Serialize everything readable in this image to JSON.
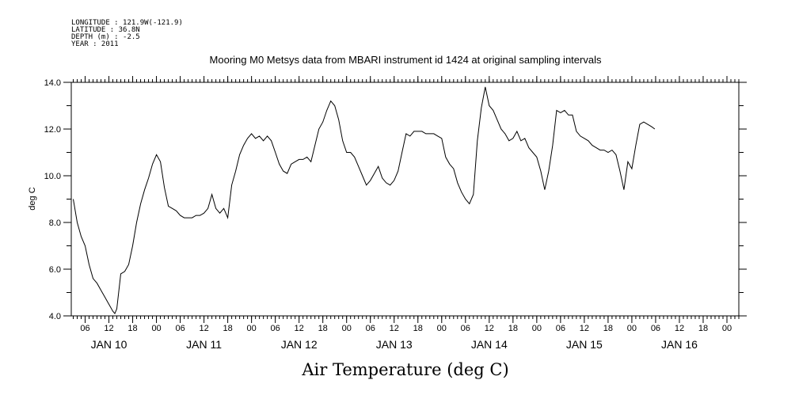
{
  "header": {
    "longitude": "LONGITUDE : 121.9W(-121.9)",
    "latitude": "LATITUDE : 36.8N",
    "depth": "DEPTH (m) : -2.5",
    "year": "YEAR : 2011"
  },
  "chart_data": {
    "type": "line",
    "title": "Mooring M0 Metsys data from MBARI instrument id 1424 at original sampling intervals",
    "footer_title": "Air Temperature (deg C)",
    "ylabel": "deg C",
    "ylim": [
      4.0,
      14.0
    ],
    "y_ticks": [
      "4.0",
      "6.0",
      "8.0",
      "10.0",
      "12.0",
      "14.0"
    ],
    "x_units": "hours since 2011-01-10 00:00",
    "xlim": [
      2.5,
      171
    ],
    "hour_ticks": [
      {
        "t": 6,
        "label": "06"
      },
      {
        "t": 12,
        "label": "12"
      },
      {
        "t": 18,
        "label": "18"
      },
      {
        "t": 24,
        "label": "00"
      },
      {
        "t": 30,
        "label": "06"
      },
      {
        "t": 36,
        "label": "12"
      },
      {
        "t": 42,
        "label": "18"
      },
      {
        "t": 48,
        "label": "00"
      },
      {
        "t": 54,
        "label": "06"
      },
      {
        "t": 60,
        "label": "12"
      },
      {
        "t": 66,
        "label": "18"
      },
      {
        "t": 72,
        "label": "00"
      },
      {
        "t": 78,
        "label": "06"
      },
      {
        "t": 84,
        "label": "12"
      },
      {
        "t": 90,
        "label": "18"
      },
      {
        "t": 96,
        "label": "00"
      },
      {
        "t": 102,
        "label": "06"
      },
      {
        "t": 108,
        "label": "12"
      },
      {
        "t": 114,
        "label": "18"
      },
      {
        "t": 120,
        "label": "00"
      },
      {
        "t": 126,
        "label": "06"
      },
      {
        "t": 132,
        "label": "12"
      },
      {
        "t": 138,
        "label": "18"
      },
      {
        "t": 144,
        "label": "00"
      },
      {
        "t": 150,
        "label": "06"
      },
      {
        "t": 156,
        "label": "12"
      },
      {
        "t": 162,
        "label": "18"
      },
      {
        "t": 168,
        "label": "00"
      }
    ],
    "day_labels": [
      {
        "t": 12,
        "label": "JAN 10"
      },
      {
        "t": 36,
        "label": "JAN 11"
      },
      {
        "t": 60,
        "label": "JAN 12"
      },
      {
        "t": 84,
        "label": "JAN 13"
      },
      {
        "t": 108,
        "label": "JAN 14"
      },
      {
        "t": 132,
        "label": "JAN 15"
      },
      {
        "t": 156,
        "label": "JAN 16"
      }
    ],
    "series": [
      {
        "points": [
          [
            3.0,
            9.0
          ],
          [
            4.0,
            8.0
          ],
          [
            5.0,
            7.4
          ],
          [
            6.0,
            7.0
          ],
          [
            7.0,
            6.2
          ],
          [
            8.0,
            5.6
          ],
          [
            9.0,
            5.4
          ],
          [
            10.0,
            5.1
          ],
          [
            11.0,
            4.8
          ],
          [
            12.0,
            4.5
          ],
          [
            13.0,
            4.2
          ],
          [
            13.5,
            4.1
          ],
          [
            14.0,
            4.3
          ],
          [
            15.0,
            5.8
          ],
          [
            16.0,
            5.9
          ],
          [
            17.0,
            6.2
          ],
          [
            18.0,
            7.0
          ],
          [
            19.0,
            8.0
          ],
          [
            20.0,
            8.8
          ],
          [
            21.0,
            9.4
          ],
          [
            22.0,
            9.9
          ],
          [
            23.0,
            10.5
          ],
          [
            24.0,
            10.9
          ],
          [
            25.0,
            10.6
          ],
          [
            26.0,
            9.5
          ],
          [
            27.0,
            8.7
          ],
          [
            28.0,
            8.6
          ],
          [
            29.0,
            8.5
          ],
          [
            30.0,
            8.3
          ],
          [
            31.0,
            8.2
          ],
          [
            32.0,
            8.2
          ],
          [
            33.0,
            8.2
          ],
          [
            34.0,
            8.3
          ],
          [
            35.0,
            8.3
          ],
          [
            36.0,
            8.4
          ],
          [
            37.0,
            8.6
          ],
          [
            38.0,
            9.2
          ],
          [
            39.0,
            8.6
          ],
          [
            40.0,
            8.4
          ],
          [
            41.0,
            8.6
          ],
          [
            42.0,
            8.2
          ],
          [
            43.0,
            9.6
          ],
          [
            44.0,
            10.2
          ],
          [
            45.0,
            10.9
          ],
          [
            46.0,
            11.3
          ],
          [
            47.0,
            11.6
          ],
          [
            48.0,
            11.8
          ],
          [
            49.0,
            11.6
          ],
          [
            50.0,
            11.7
          ],
          [
            51.0,
            11.5
          ],
          [
            52.0,
            11.7
          ],
          [
            53.0,
            11.5
          ],
          [
            54.0,
            11.0
          ],
          [
            55.0,
            10.5
          ],
          [
            56.0,
            10.2
          ],
          [
            57.0,
            10.1
          ],
          [
            58.0,
            10.5
          ],
          [
            59.0,
            10.6
          ],
          [
            60.0,
            10.7
          ],
          [
            61.0,
            10.7
          ],
          [
            62.0,
            10.8
          ],
          [
            63.0,
            10.6
          ],
          [
            64.0,
            11.3
          ],
          [
            65.0,
            12.0
          ],
          [
            66.0,
            12.3
          ],
          [
            67.0,
            12.8
          ],
          [
            68.0,
            13.2
          ],
          [
            69.0,
            13.0
          ],
          [
            70.0,
            12.4
          ],
          [
            71.0,
            11.5
          ],
          [
            72.0,
            11.0
          ],
          [
            73.0,
            11.0
          ],
          [
            74.0,
            10.8
          ],
          [
            75.0,
            10.4
          ],
          [
            76.0,
            10.0
          ],
          [
            77.0,
            9.6
          ],
          [
            78.0,
            9.8
          ],
          [
            79.0,
            10.1
          ],
          [
            80.0,
            10.4
          ],
          [
            81.0,
            9.9
          ],
          [
            82.0,
            9.7
          ],
          [
            83.0,
            9.6
          ],
          [
            84.0,
            9.8
          ],
          [
            85.0,
            10.2
          ],
          [
            86.0,
            11.0
          ],
          [
            87.0,
            11.8
          ],
          [
            88.0,
            11.7
          ],
          [
            89.0,
            11.9
          ],
          [
            90.0,
            11.9
          ],
          [
            91.0,
            11.9
          ],
          [
            92.0,
            11.8
          ],
          [
            93.0,
            11.8
          ],
          [
            94.0,
            11.8
          ],
          [
            95.0,
            11.7
          ],
          [
            96.0,
            11.6
          ],
          [
            97.0,
            10.8
          ],
          [
            98.0,
            10.5
          ],
          [
            99.0,
            10.3
          ],
          [
            100.0,
            9.7
          ],
          [
            101.0,
            9.3
          ],
          [
            102.0,
            9.0
          ],
          [
            103.0,
            8.8
          ],
          [
            104.0,
            9.2
          ],
          [
            105.0,
            11.5
          ],
          [
            106.0,
            12.9
          ],
          [
            107.0,
            13.8
          ],
          [
            108.0,
            13.0
          ],
          [
            109.0,
            12.8
          ],
          [
            110.0,
            12.4
          ],
          [
            111.0,
            12.0
          ],
          [
            112.0,
            11.8
          ],
          [
            113.0,
            11.5
          ],
          [
            114.0,
            11.6
          ],
          [
            115.0,
            11.9
          ],
          [
            116.0,
            11.5
          ],
          [
            117.0,
            11.6
          ],
          [
            118.0,
            11.2
          ],
          [
            119.0,
            11.0
          ],
          [
            120.0,
            10.8
          ],
          [
            121.0,
            10.2
          ],
          [
            122.0,
            9.4
          ],
          [
            123.0,
            10.2
          ],
          [
            124.0,
            11.3
          ],
          [
            125.0,
            12.8
          ],
          [
            126.0,
            12.7
          ],
          [
            127.0,
            12.8
          ],
          [
            128.0,
            12.6
          ],
          [
            129.0,
            12.6
          ],
          [
            130.0,
            11.9
          ],
          [
            131.0,
            11.7
          ],
          [
            132.0,
            11.6
          ],
          [
            133.0,
            11.5
          ],
          [
            134.0,
            11.3
          ],
          [
            135.0,
            11.2
          ],
          [
            136.0,
            11.1
          ],
          [
            137.0,
            11.1
          ],
          [
            138.0,
            11.0
          ],
          [
            139.0,
            11.1
          ],
          [
            140.0,
            10.9
          ],
          [
            141.0,
            10.2
          ],
          [
            142.0,
            9.4
          ],
          [
            143.0,
            10.6
          ],
          [
            144.0,
            10.3
          ],
          [
            145.0,
            11.3
          ],
          [
            146.0,
            12.2
          ],
          [
            147.0,
            12.3
          ],
          [
            148.0,
            12.2
          ],
          [
            149.0,
            12.1
          ],
          [
            149.8,
            12.0
          ]
        ]
      }
    ]
  }
}
